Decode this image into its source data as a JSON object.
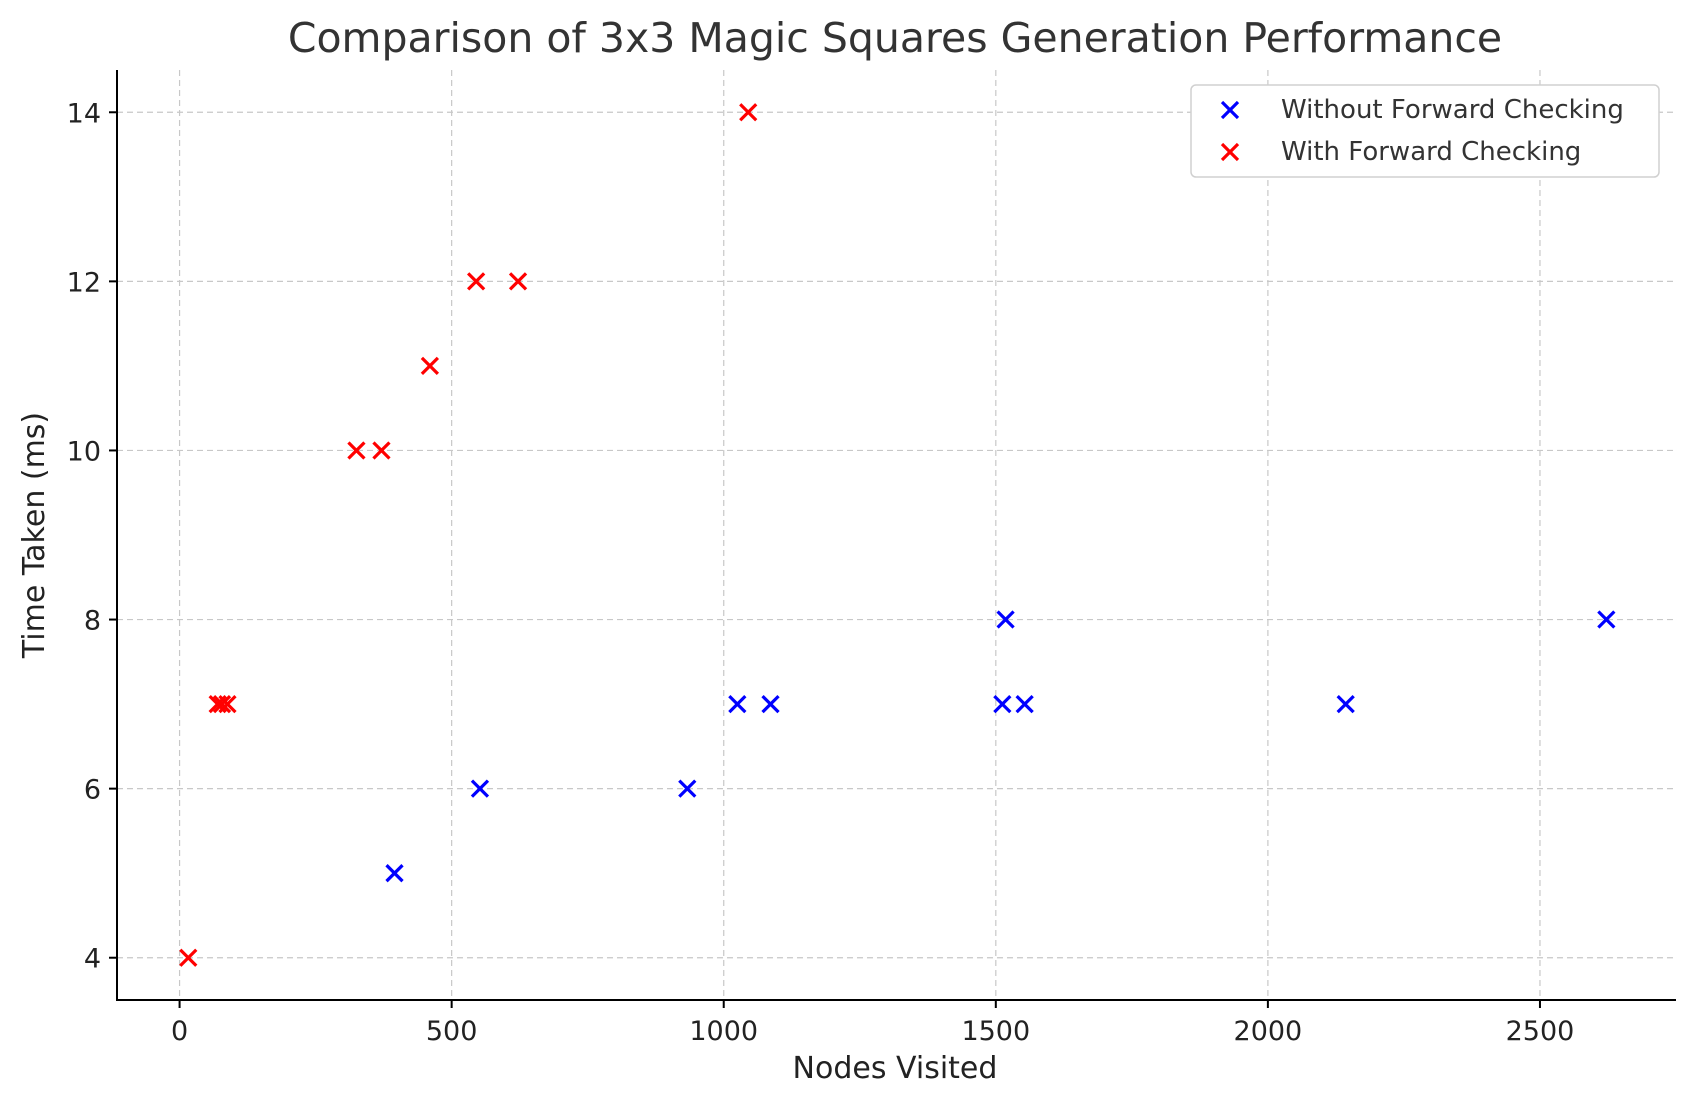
{
  "chart_data": {
    "type": "scatter",
    "title": "Comparison of 3x3 Magic Squares Generation Performance",
    "xlabel": "Nodes Visited",
    "ylabel": "Time Taken (ms)",
    "xlim": [
      -115,
      2750
    ],
    "ylim": [
      3.5,
      14.5
    ],
    "xticks": [
      0,
      500,
      1000,
      1500,
      2000,
      2500
    ],
    "yticks": [
      4,
      6,
      8,
      10,
      12,
      14
    ],
    "grid": true,
    "legend_position": "top-right",
    "marker": "x",
    "series": [
      {
        "name": "Without Forward Checking",
        "color": "#0000ff",
        "points": [
          {
            "x": 395,
            "y": 5
          },
          {
            "x": 552,
            "y": 6
          },
          {
            "x": 933,
            "y": 6
          },
          {
            "x": 1025,
            "y": 7
          },
          {
            "x": 1086,
            "y": 7
          },
          {
            "x": 1512,
            "y": 7
          },
          {
            "x": 1518,
            "y": 8
          },
          {
            "x": 1553,
            "y": 7
          },
          {
            "x": 2143,
            "y": 7
          },
          {
            "x": 2622,
            "y": 8
          }
        ]
      },
      {
        "name": "With Forward Checking",
        "color": "#ff0000",
        "points": [
          {
            "x": 16,
            "y": 4
          },
          {
            "x": 70,
            "y": 7
          },
          {
            "x": 78,
            "y": 7
          },
          {
            "x": 88,
            "y": 7
          },
          {
            "x": 325,
            "y": 10
          },
          {
            "x": 371,
            "y": 10
          },
          {
            "x": 460,
            "y": 11
          },
          {
            "x": 545,
            "y": 12
          },
          {
            "x": 622,
            "y": 12
          },
          {
            "x": 1045,
            "y": 14
          }
        ]
      }
    ]
  }
}
